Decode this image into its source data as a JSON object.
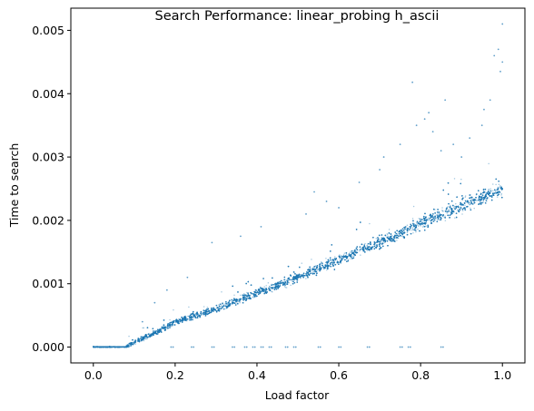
{
  "chart_data": {
    "type": "scatter",
    "title": "Search Performance: linear_probing h_ascii",
    "xlabel": "Load factor",
    "ylabel": "Time to search",
    "xlim": [
      -0.055,
      1.055
    ],
    "ylim": [
      -0.00025,
      0.00535
    ],
    "x_ticks": [
      0.0,
      0.2,
      0.4,
      0.6,
      0.8,
      1.0
    ],
    "x_tick_labels": [
      "0.0",
      "0.2",
      "0.4",
      "0.6",
      "0.8",
      "1.0"
    ],
    "y_ticks": [
      0.0,
      0.001,
      0.002,
      0.003,
      0.004,
      0.005
    ],
    "y_tick_labels": [
      "0.000",
      "0.001",
      "0.002",
      "0.003",
      "0.004",
      "0.005"
    ],
    "grid": false,
    "marker_color": "#1f77b4",
    "trend": {
      "x": [
        0.0,
        0.08,
        0.1,
        0.15,
        0.2,
        0.3,
        0.4,
        0.5,
        0.6,
        0.7,
        0.8,
        0.9,
        1.0
      ],
      "y": [
        0.0,
        0.0,
        8e-05,
        0.00022,
        0.0004,
        0.0006,
        0.00085,
        0.0011,
        0.00138,
        0.00165,
        0.00195,
        0.00222,
        0.0025
      ],
      "spread": 6e-05,
      "point_count": 9000
    },
    "zero_outliers_x": [
      0.19,
      0.24,
      0.29,
      0.34,
      0.37,
      0.39,
      0.41,
      0.43,
      0.47,
      0.49,
      0.55,
      0.6,
      0.67,
      0.75,
      0.77,
      0.85
    ],
    "high_outliers": [
      {
        "x": 1.0,
        "y": 0.0051
      },
      {
        "x": 0.99,
        "y": 0.0047
      },
      {
        "x": 1.0,
        "y": 0.0045
      },
      {
        "x": 0.98,
        "y": 0.0046
      },
      {
        "x": 0.995,
        "y": 0.00435
      },
      {
        "x": 0.78,
        "y": 0.00418
      },
      {
        "x": 0.86,
        "y": 0.0039
      },
      {
        "x": 0.955,
        "y": 0.00375
      },
      {
        "x": 0.82,
        "y": 0.0037
      },
      {
        "x": 0.81,
        "y": 0.0036
      },
      {
        "x": 0.95,
        "y": 0.0035
      },
      {
        "x": 0.79,
        "y": 0.0035
      },
      {
        "x": 0.83,
        "y": 0.0034
      },
      {
        "x": 0.71,
        "y": 0.003
      },
      {
        "x": 0.92,
        "y": 0.0033
      },
      {
        "x": 0.75,
        "y": 0.0032
      },
      {
        "x": 0.85,
        "y": 0.0031
      },
      {
        "x": 0.54,
        "y": 0.00245
      },
      {
        "x": 0.52,
        "y": 0.0021
      },
      {
        "x": 0.57,
        "y": 0.0023
      },
      {
        "x": 0.6,
        "y": 0.0022
      },
      {
        "x": 0.41,
        "y": 0.0019
      },
      {
        "x": 0.36,
        "y": 0.00175
      },
      {
        "x": 0.29,
        "y": 0.00165
      },
      {
        "x": 0.23,
        "y": 0.0011
      },
      {
        "x": 0.18,
        "y": 0.0009
      },
      {
        "x": 0.15,
        "y": 0.0007
      },
      {
        "x": 0.12,
        "y": 0.0004
      },
      {
        "x": 0.65,
        "y": 0.0026
      },
      {
        "x": 0.7,
        "y": 0.0028
      },
      {
        "x": 0.88,
        "y": 0.0032
      },
      {
        "x": 0.9,
        "y": 0.003
      },
      {
        "x": 0.97,
        "y": 0.0039
      }
    ]
  }
}
